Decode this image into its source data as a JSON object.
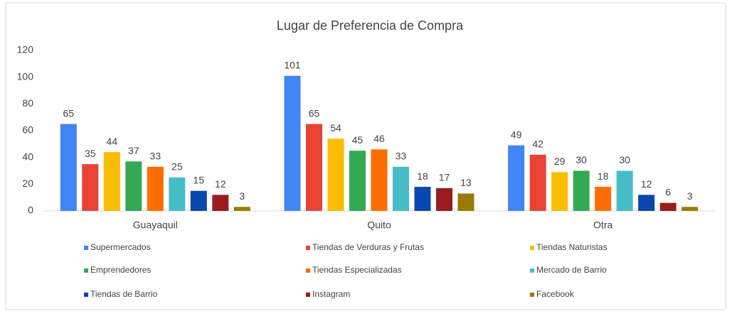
{
  "chart_data": {
    "type": "bar",
    "title": "Lugar de Preferencia de Compra",
    "categories": [
      "Guayaquil",
      "Quito",
      "Otra"
    ],
    "series": [
      {
        "name": "Supermercados",
        "color": "#4285f4",
        "values": [
          65,
          101,
          49
        ]
      },
      {
        "name": "Tiendas de Verduras y Frutas",
        "color": "#ea4335",
        "values": [
          35,
          65,
          42
        ]
      },
      {
        "name": "Tiendas Naturistas",
        "color": "#fbbc04",
        "values": [
          44,
          54,
          29
        ]
      },
      {
        "name": "Emprendedores",
        "color": "#34a853",
        "values": [
          37,
          45,
          30
        ]
      },
      {
        "name": "Tiendas Especializadas",
        "color": "#ff6d01",
        "values": [
          33,
          46,
          18
        ]
      },
      {
        "name": "Mercado de Barrio",
        "color": "#46bdc6",
        "values": [
          25,
          33,
          30
        ]
      },
      {
        "name": "Tiendas de Barrio",
        "color": "#0b47b0",
        "values": [
          15,
          18,
          12
        ]
      },
      {
        "name": "Instagram",
        "color": "#9b1c1c",
        "values": [
          12,
          17,
          6
        ]
      },
      {
        "name": "Facebook",
        "color": "#9c7a00",
        "values": [
          3,
          13,
          3
        ]
      }
    ],
    "ylim": [
      0,
      120
    ],
    "yticks": [
      0,
      20,
      40,
      60,
      80,
      100,
      120
    ],
    "grid": false,
    "legend": "bottom"
  }
}
